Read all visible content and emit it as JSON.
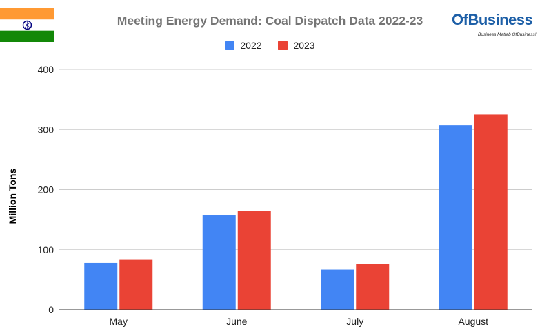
{
  "chart_data": {
    "type": "bar",
    "title": "Meeting Energy Demand: Coal Dispatch Data 2022-23",
    "ylabel": "Million Tons",
    "xlabel": "",
    "categories": [
      "May",
      "June",
      "July",
      "August"
    ],
    "series": [
      {
        "name": "2022",
        "values": [
          78,
          157,
          67,
          307
        ]
      },
      {
        "name": "2023",
        "values": [
          83,
          165,
          76,
          325
        ]
      }
    ],
    "ylim": [
      0,
      400
    ],
    "yticks": [
      0,
      100,
      200,
      300,
      400
    ],
    "grid": true,
    "legend": "top"
  },
  "colors": {
    "series_2022": "#4285f4",
    "series_2023": "#ea4335",
    "title": "#757575",
    "grid": "#cccccc"
  },
  "logo": {
    "brand": "OfBusiness",
    "tagline": "Business Matlab OfBusiness!"
  },
  "flag": {
    "icon": "india-flag-icon"
  }
}
